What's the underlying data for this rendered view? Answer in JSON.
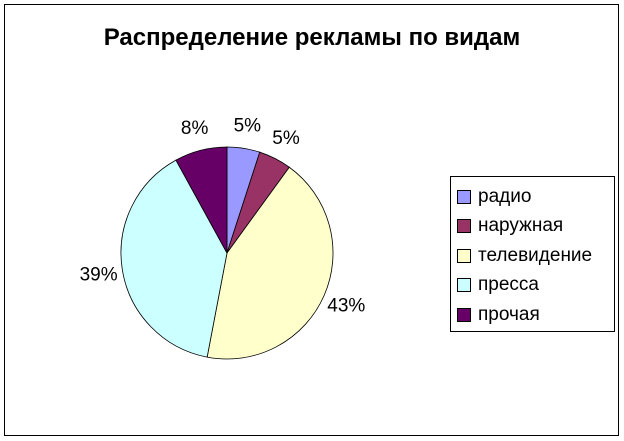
{
  "chart_data": {
    "type": "pie",
    "title": "Распределение рекламы по видам",
    "categories": [
      "радио",
      "наружная",
      "телевидение",
      "пресса",
      "прочая"
    ],
    "values": [
      5,
      5,
      43,
      39,
      8
    ],
    "data_labels": [
      "5%",
      "5%",
      "43%",
      "39%",
      "8%"
    ],
    "colors": [
      "#9999FF",
      "#993366",
      "#FFFFCC",
      "#CCFFFF",
      "#660066"
    ],
    "legend_position": "right",
    "start_angle": "top, clockwise"
  }
}
